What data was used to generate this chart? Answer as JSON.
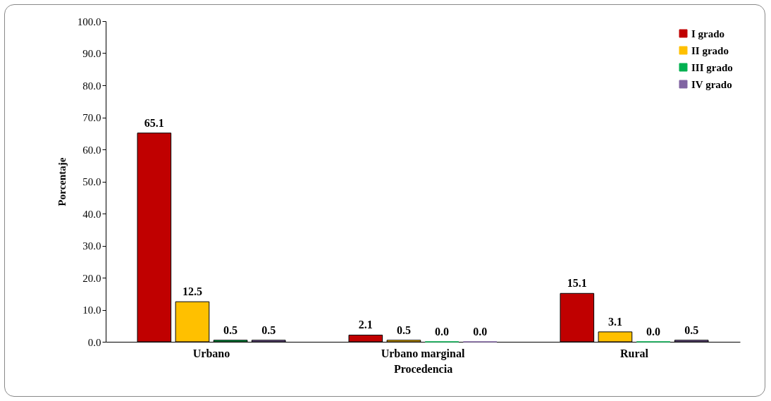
{
  "chart_data": {
    "type": "bar",
    "xlabel": "Procedencia",
    "ylabel": "Porcentaje",
    "categories": [
      "Urbano",
      "Urbano marginal",
      "Rural"
    ],
    "series": [
      {
        "name": "I grado",
        "color": "#c00000",
        "values": [
          65.1,
          2.1,
          15.1
        ],
        "value_labels": [
          "65.1",
          "2.1",
          "15.1"
        ]
      },
      {
        "name": "II grado",
        "color": "#ffc000",
        "values": [
          12.5,
          0.5,
          3.1
        ],
        "value_labels": [
          "12.5",
          "0.5",
          "3.1"
        ]
      },
      {
        "name": "III grado",
        "color": "#00b050",
        "values": [
          0.5,
          0.0,
          0.0
        ],
        "value_labels": [
          "0.5",
          "0.0",
          "0.0"
        ]
      },
      {
        "name": "IV grado",
        "color": "#8064a2",
        "values": [
          0.5,
          0.0,
          0.5
        ],
        "value_labels": [
          "0.5",
          "0.0",
          "0.5"
        ]
      }
    ],
    "ylim": [
      0,
      100
    ],
    "yticks": [
      {
        "value": 0,
        "label": "0.0"
      },
      {
        "value": 10,
        "label": "10.0"
      },
      {
        "value": 20,
        "label": "20.0"
      },
      {
        "value": 30,
        "label": "30.0"
      },
      {
        "value": 40,
        "label": "40.0"
      },
      {
        "value": 50,
        "label": "50.0"
      },
      {
        "value": 60,
        "label": "60.0"
      },
      {
        "value": 70,
        "label": "70.0"
      },
      {
        "value": 80,
        "label": "80.0"
      },
      {
        "value": 90,
        "label": "90.0"
      },
      {
        "value": 100,
        "label": "100.0"
      }
    ],
    "grid": false,
    "legend": "top right"
  }
}
